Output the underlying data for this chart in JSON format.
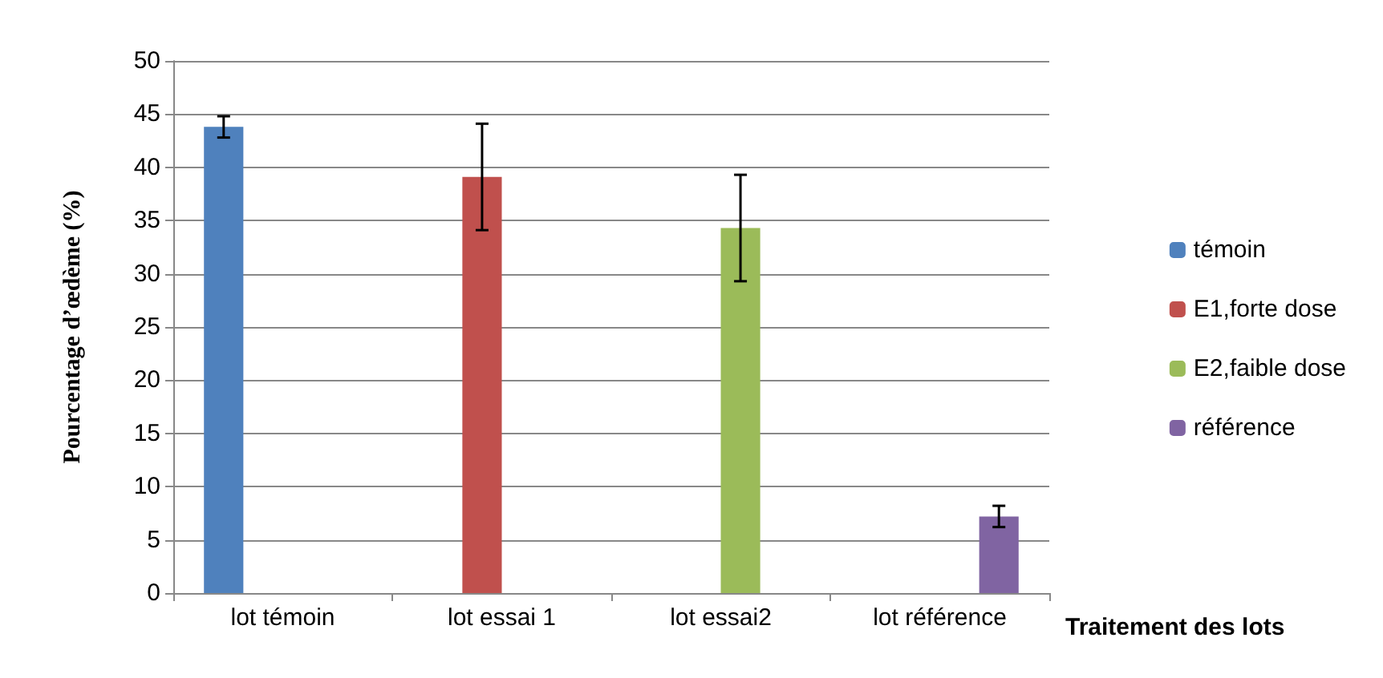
{
  "chart_data": {
    "type": "bar",
    "ylabel": "Pourcentage d’œdème (%)",
    "xlabel": "Traitement des lots",
    "categories": [
      "lot témoin",
      "lot essai 1",
      "lot essai2",
      "lot référence"
    ],
    "series": [
      {
        "name": "témoin",
        "color": "#4f81bd",
        "values": [
          43.8,
          null,
          null,
          null
        ],
        "errors": [
          1,
          null,
          null,
          null
        ]
      },
      {
        "name": "E1,forte dose",
        "color": "#c0504d",
        "values": [
          null,
          39.1,
          null,
          null
        ],
        "errors": [
          null,
          5,
          null,
          null
        ]
      },
      {
        "name": "E2,faible dose",
        "color": "#9bbb59",
        "values": [
          null,
          null,
          34.3,
          null
        ],
        "errors": [
          null,
          null,
          5,
          null
        ]
      },
      {
        "name": "référence",
        "color": "#8064a2",
        "values": [
          null,
          null,
          null,
          7.2
        ],
        "errors": [
          null,
          null,
          null,
          1
        ]
      }
    ],
    "ylim": [
      0,
      50
    ],
    "yticks": [
      0,
      5,
      10,
      15,
      20,
      25,
      30,
      35,
      40,
      45,
      50
    ],
    "grid": "y",
    "legend": "right"
  }
}
